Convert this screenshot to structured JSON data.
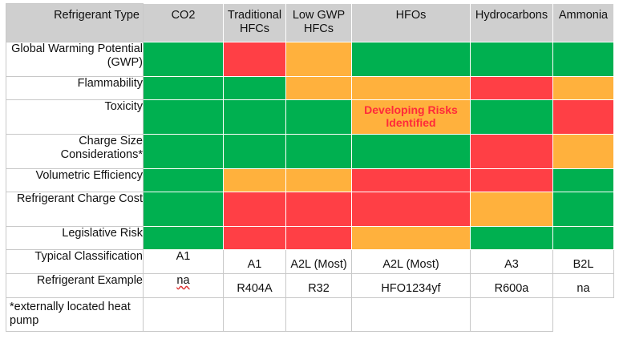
{
  "header": {
    "row_label": "Refrigerant Type",
    "columns": [
      "CO2",
      "Traditional HFCs",
      "Low GWP HFCs",
      "HFOs",
      "Hydrocarbons",
      "Ammonia"
    ]
  },
  "rows": [
    {
      "label": "Global Warming Potential (GWP)",
      "ratings": [
        "green",
        "red",
        "orange",
        "green",
        "green",
        "green"
      ]
    },
    {
      "label": "Flammability",
      "ratings": [
        "green",
        "green",
        "orange",
        "orange",
        "red",
        "orange"
      ]
    },
    {
      "label": "Toxicity",
      "ratings": [
        "green",
        "green",
        "green",
        "orange",
        "green",
        "red"
      ],
      "note_column": 3,
      "note": "Developing Risks Identified"
    },
    {
      "label": "Charge Size Considerations*",
      "ratings": [
        "green",
        "green",
        "green",
        "green",
        "red",
        "orange"
      ]
    },
    {
      "label": "Volumetric Efficiency",
      "ratings": [
        "green",
        "orange",
        "orange",
        "red",
        "red",
        "green"
      ]
    },
    {
      "label": "Refrigerant Charge Cost",
      "ratings": [
        "green",
        "red",
        "red",
        "red",
        "orange",
        "green"
      ]
    },
    {
      "label": "Legislative Risk",
      "ratings": [
        "green",
        "red",
        "red",
        "orange",
        "green",
        "green"
      ]
    }
  ],
  "classification": {
    "label": "Typical Classification",
    "values": [
      "A1",
      "A1",
      "A2L (Most)",
      "A2L (Most)",
      "A3",
      "B2L"
    ]
  },
  "example": {
    "label": "Refrigerant Example",
    "values": [
      "na",
      "R404A",
      "R32",
      "HFO1234yf",
      "R600a",
      "na"
    ]
  },
  "footnote": "*externally located heat pump",
  "colors": {
    "green": "#00b050",
    "red": "#ff3f45",
    "orange": "#ffb13d",
    "header_bg": "#cfcfcf",
    "note_text": "#ff2a3a"
  }
}
